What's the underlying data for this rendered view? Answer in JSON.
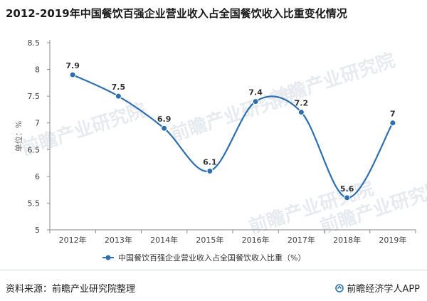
{
  "header": {
    "title": "2012-2019年中国餐饮百强企业营业收入占全国餐饮收入比重变化情况"
  },
  "footer": {
    "source": "资料来源：前瞻产业研究院整理",
    "brand": "前瞻经济学人APP"
  },
  "watermark": {
    "text": "前瞻产业研究院"
  },
  "colors": {
    "series": "#2e6fad",
    "axis": "#8a8a8a",
    "text": "#404040"
  },
  "chart_data": {
    "type": "line",
    "title": "2012-2019年中国餐饮百强企业营业收入占全国餐饮收入比重变化情况",
    "xlabel": "",
    "ylabel": "单位：%",
    "categories": [
      "2012年",
      "2013年",
      "2014年",
      "2015年",
      "2016年",
      "2017年",
      "2018年",
      "2019年"
    ],
    "series": [
      {
        "name": "中国餐饮百强企业营业收入占全国餐饮收入比重（%）",
        "values": [
          7.9,
          7.5,
          6.9,
          6.1,
          7.4,
          7.2,
          5.6,
          7.0
        ]
      }
    ],
    "data_labels": [
      "7.9",
      "7.5",
      "6.9",
      "6.1",
      "7.4",
      "7.2",
      "5.6",
      "7"
    ],
    "ylim": [
      5,
      8.5
    ],
    "yticks": [
      5,
      5.5,
      6,
      6.5,
      7,
      7.5,
      8,
      8.5
    ],
    "ytick_labels": [
      "5",
      "5.5",
      "6",
      "6.5",
      "7",
      "7.5",
      "8",
      "8.5"
    ],
    "smooth": true,
    "grid": false,
    "legend_position": "bottom"
  }
}
